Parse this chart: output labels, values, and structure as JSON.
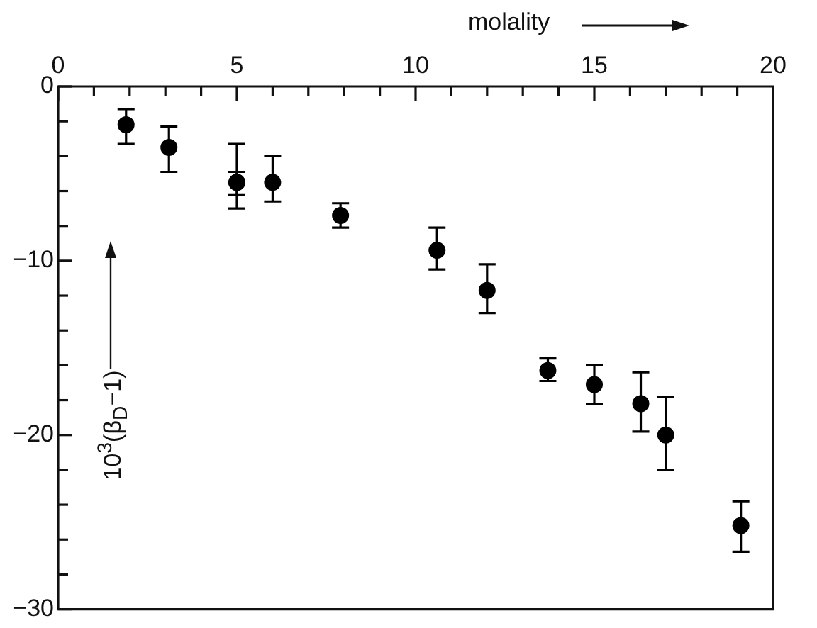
{
  "chart_data": {
    "type": "scatter",
    "xlabel": "molality",
    "ylabel": "10$^{3}$(β$_{D}$−1)",
    "marker": "circle",
    "xlim": [
      0,
      20
    ],
    "xticks": [
      0,
      {
        "value": 1,
        "label": null
      },
      {
        "value": 2,
        "label": null
      },
      {
        "value": 3,
        "label": null
      },
      {
        "value": 4,
        "label": null
      },
      5,
      {
        "value": 6,
        "label": null
      },
      {
        "value": 7,
        "label": null
      },
      {
        "value": 8,
        "label": null
      },
      {
        "value": 9,
        "label": null
      },
      10,
      {
        "value": 11,
        "label": null
      },
      {
        "value": 12,
        "label": null
      },
      {
        "value": 13,
        "label": null
      },
      {
        "value": 14,
        "label": null
      },
      15,
      {
        "value": 16,
        "label": null
      },
      {
        "value": 17,
        "label": null
      },
      {
        "value": 18,
        "label": null
      },
      {
        "value": 19,
        "label": null
      },
      20
    ],
    "ylim": [
      -30,
      0
    ],
    "yticks": [
      0,
      {
        "value": -2,
        "label": null
      },
      {
        "value": -4,
        "label": null
      },
      {
        "value": -6,
        "label": null
      },
      {
        "value": -8,
        "label": null
      },
      -10,
      {
        "value": -12,
        "label": null
      },
      {
        "value": -14,
        "label": null
      },
      {
        "value": -16,
        "label": null
      },
      {
        "value": -18,
        "label": null
      },
      -20,
      {
        "value": -22,
        "label": null
      },
      {
        "value": -24,
        "label": null
      },
      {
        "value": -26,
        "label": null
      },
      {
        "value": -28,
        "label": null
      },
      -30
    ],
    "series": [
      {
        "color": "#000000",
        "x": [
          1.9,
          3.1,
          5.0,
          5.0,
          6.0,
          7.9,
          10.6,
          12.0,
          13.7,
          15.0,
          16.3,
          17.0,
          19.1
        ],
        "values": [
          -2.2,
          -3.5,
          -5.5,
          -5.5,
          -5.5,
          -7.4,
          -9.4,
          -11.7,
          -16.3,
          -17.1,
          -18.2,
          -20.0,
          -25.2
        ],
        "errors": [
          [
            -3.3,
            -1.3
          ],
          [
            -4.9,
            -2.3
          ],
          [
            -7.0,
            -3.3
          ],
          [
            -6.2,
            -4.9
          ],
          [
            -6.6,
            -4.0
          ],
          [
            -8.1,
            -6.7
          ],
          [
            -10.5,
            -8.1
          ],
          [
            -13.0,
            -10.2
          ],
          [
            -16.9,
            -15.6
          ],
          [
            -18.2,
            -16.0
          ],
          [
            -19.8,
            -16.4
          ],
          [
            -22.0,
            -17.8
          ],
          [
            -26.7,
            -23.8
          ]
        ]
      }
    ]
  }
}
